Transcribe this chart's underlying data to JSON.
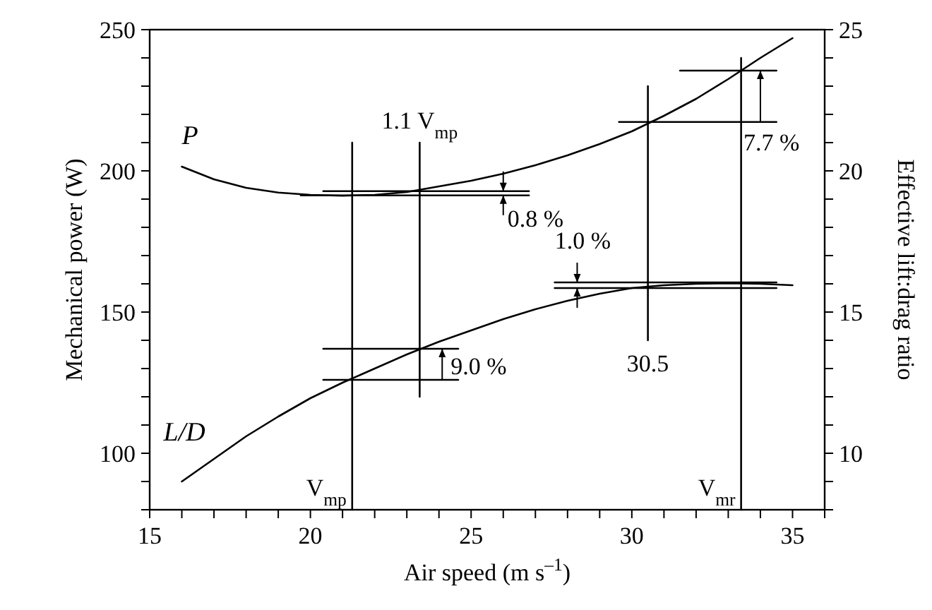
{
  "chart_data": {
    "type": "line",
    "xlabel": "Air speed (m s$^{–1}$)",
    "ylabel": "Mechanical power (W)",
    "y2label": "Effective lift:drag ratio",
    "xlim": [
      15,
      36
    ],
    "xticks": [
      15,
      {
        "value": 16,
        "label": null
      },
      {
        "value": 17,
        "label": null
      },
      {
        "value": 18,
        "label": null
      },
      {
        "value": 19,
        "label": null
      },
      20,
      {
        "value": 21,
        "label": null
      },
      {
        "value": 22,
        "label": null
      },
      {
        "value": 23,
        "label": null
      },
      {
        "value": 24,
        "label": null
      },
      25,
      {
        "value": 26,
        "label": null
      },
      {
        "value": 27,
        "label": null
      },
      {
        "value": 28,
        "label": null
      },
      {
        "value": 29,
        "label": null
      },
      30,
      {
        "value": 31,
        "label": null
      },
      {
        "value": 32,
        "label": null
      },
      {
        "value": 33,
        "label": null
      },
      {
        "value": 34,
        "label": null
      },
      35,
      {
        "value": 36,
        "label": null
      }
    ],
    "ylim": [
      80,
      250
    ],
    "yticks": [
      {
        "value": 80,
        "label": null
      },
      {
        "value": 90,
        "label": null
      },
      100,
      {
        "value": 110,
        "label": null
      },
      {
        "value": 120,
        "label": null
      },
      {
        "value": 130,
        "label": null
      },
      {
        "value": 140,
        "label": null
      },
      150,
      {
        "value": 160,
        "label": null
      },
      {
        "value": 170,
        "label": null
      },
      {
        "value": 180,
        "label": null
      },
      {
        "value": 190,
        "label": null
      },
      200,
      {
        "value": 210,
        "label": null
      },
      {
        "value": 220,
        "label": null
      },
      {
        "value": 230,
        "label": null
      },
      {
        "value": 240,
        "label": null
      },
      250
    ],
    "y2lim": [
      8,
      25
    ],
    "y2ticks": [
      {
        "value": 8,
        "label": null
      },
      {
        "value": 9,
        "label": null
      },
      10,
      {
        "value": 11,
        "label": null
      },
      {
        "value": 12,
        "label": null
      },
      {
        "value": 13,
        "label": null
      },
      {
        "value": 14,
        "label": null
      },
      15,
      {
        "value": 16,
        "label": null
      },
      {
        "value": 17,
        "label": null
      },
      {
        "value": 18,
        "label": null
      },
      {
        "value": 19,
        "label": null
      },
      20,
      {
        "value": 21,
        "label": null
      },
      {
        "value": 22,
        "label": null
      },
      {
        "value": 23,
        "label": null
      },
      {
        "value": 24,
        "label": null
      },
      25
    ],
    "grid": false,
    "legend": "left",
    "marker": "none",
    "line_style": "solid",
    "series": [
      {
        "name": "P",
        "color": "#000000",
        "x": [
          16,
          17,
          18,
          19,
          20,
          21,
          22,
          23,
          24,
          25,
          26,
          27,
          28,
          29,
          30,
          31,
          32,
          33,
          34,
          35
        ],
        "values": [
          201.5,
          197,
          194,
          192.3,
          191.5,
          191.2,
          191.5,
          192.5,
          194.5,
          196.5,
          199,
          202,
          205.5,
          209.5,
          214,
          219.5,
          225.5,
          232.5,
          240,
          247
        ]
      },
      {
        "name": "L/D",
        "color": "#000000",
        "axis": "y2",
        "x": [
          16,
          17,
          18,
          19,
          20,
          21,
          22,
          23,
          24,
          25,
          26,
          27,
          28,
          29,
          30,
          31,
          32,
          33,
          34,
          35
        ],
        "values": [
          9,
          9.8,
          10.6,
          11.3,
          11.95,
          12.5,
          13,
          13.5,
          13.95,
          14.35,
          14.75,
          15.1,
          15.4,
          15.65,
          15.85,
          15.95,
          16,
          16.02,
          16,
          15.95
        ]
      },
      {
        "color": "#000000",
        "x": [
          21.3,
          21.3
        ],
        "values": [
          80,
          210
        ]
      },
      {
        "color": "#000000",
        "x": [
          23.4,
          23.4
        ],
        "values": [
          120,
          210
        ]
      },
      {
        "color": "#000000",
        "x": [
          30.5,
          30.5
        ],
        "values": [
          140,
          230
        ]
      },
      {
        "color": "#000000",
        "x": [
          33.4,
          33.4
        ],
        "values": [
          80,
          240
        ]
      },
      {
        "color": "#000000",
        "x": [
          19.7,
          26.8
        ],
        "values": [
          191.3,
          191.3
        ]
      },
      {
        "color": "#000000",
        "x": [
          20.4,
          26.8
        ],
        "values": [
          192.8,
          192.8
        ]
      },
      {
        "color": "#000000",
        "axis": "y2",
        "x": [
          20.4,
          24.6
        ],
        "values": [
          12.6,
          12.6
        ]
      },
      {
        "color": "#000000",
        "axis": "y2",
        "x": [
          20.4,
          24.6
        ],
        "values": [
          13.7,
          13.7
        ]
      },
      {
        "color": "#000000",
        "axis": "y2",
        "x": [
          27.6,
          34.5
        ],
        "values": [
          15.85,
          15.85
        ]
      },
      {
        "color": "#000000",
        "axis": "y2",
        "x": [
          27.6,
          34.5
        ],
        "values": [
          16.05,
          16.05
        ]
      },
      {
        "color": "#000000",
        "x": [
          29.6,
          34.5
        ],
        "values": [
          217.3,
          217.3
        ]
      },
      {
        "color": "#000000",
        "x": [
          31.5,
          34.5
        ],
        "values": [
          235.5,
          235.5
        ]
      }
    ],
    "annotations": [
      {
        "text": "1.1 V$_{mp}$",
        "x": 23.4,
        "y": 210
      },
      {
        "text": "V$_{mp}$",
        "x": 21.3,
        "y": 80
      },
      {
        "text": "V$_{mr}$",
        "x": 33.4,
        "y": 80
      },
      {
        "text": "30.5",
        "x": 30.5,
        "y": 140
      },
      {
        "text": "0.8 %",
        "x": 26,
        "y": 191.3
      },
      {
        "text": "1.0 %",
        "x": 28.3,
        "y": 160.5
      },
      {
        "text": "9.0 %",
        "x": 24.1,
        "y": 126
      },
      {
        "text": "7.7 %",
        "x": 34,
        "y": 217.3
      }
    ]
  }
}
